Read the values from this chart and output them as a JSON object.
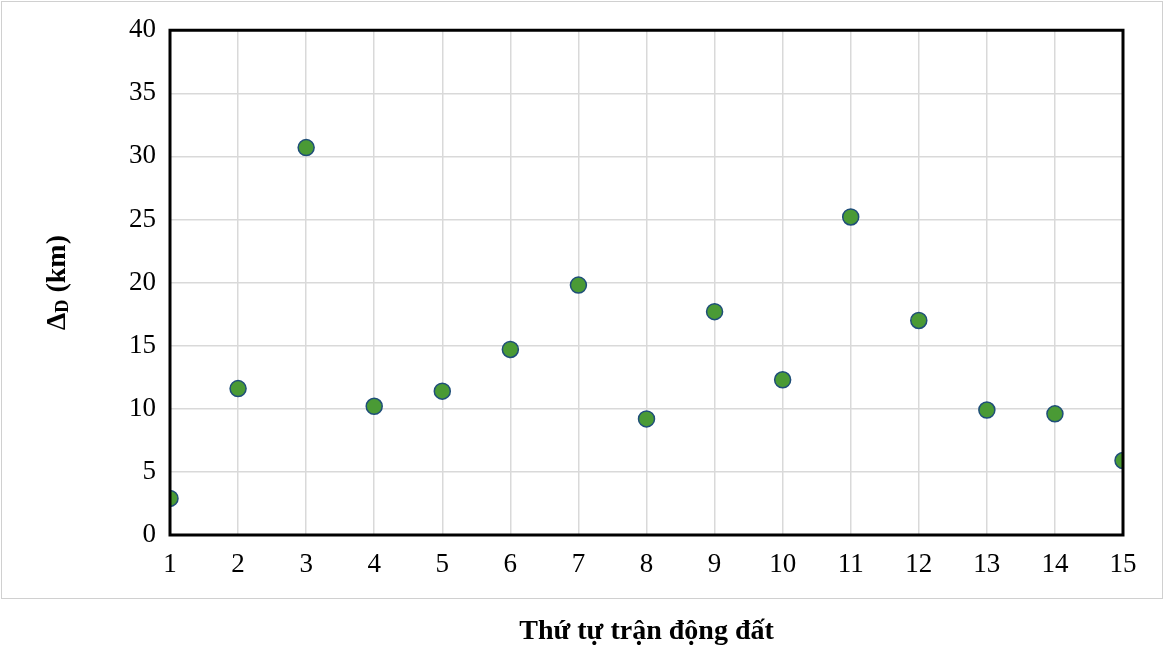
{
  "chart_data": {
    "type": "scatter",
    "xlabel": "Thứ tự trận động đất",
    "ylabel": "Δ$_{D}$ (km)",
    "x": [
      1,
      2,
      3,
      4,
      5,
      6,
      7,
      8,
      9,
      10,
      11,
      12,
      13,
      14,
      15
    ],
    "series": [
      {
        "color": "#4a9a35",
        "values": [
          2.9,
          11.6,
          30.7,
          10.2,
          11.4,
          14.7,
          19.8,
          9.2,
          17.7,
          12.3,
          25.2,
          17.0,
          9.9,
          9.6,
          5.9
        ]
      }
    ],
    "xlim": [
      1,
      15
    ],
    "xticks": [
      1,
      2,
      3,
      4,
      5,
      6,
      7,
      8,
      9,
      10,
      11,
      12,
      13,
      14,
      15
    ],
    "ylim": [
      0,
      40
    ],
    "yticks": [
      0,
      5,
      10,
      15,
      20,
      25,
      30,
      35,
      40
    ],
    "grid": true,
    "legend": false,
    "marker": "circle"
  }
}
